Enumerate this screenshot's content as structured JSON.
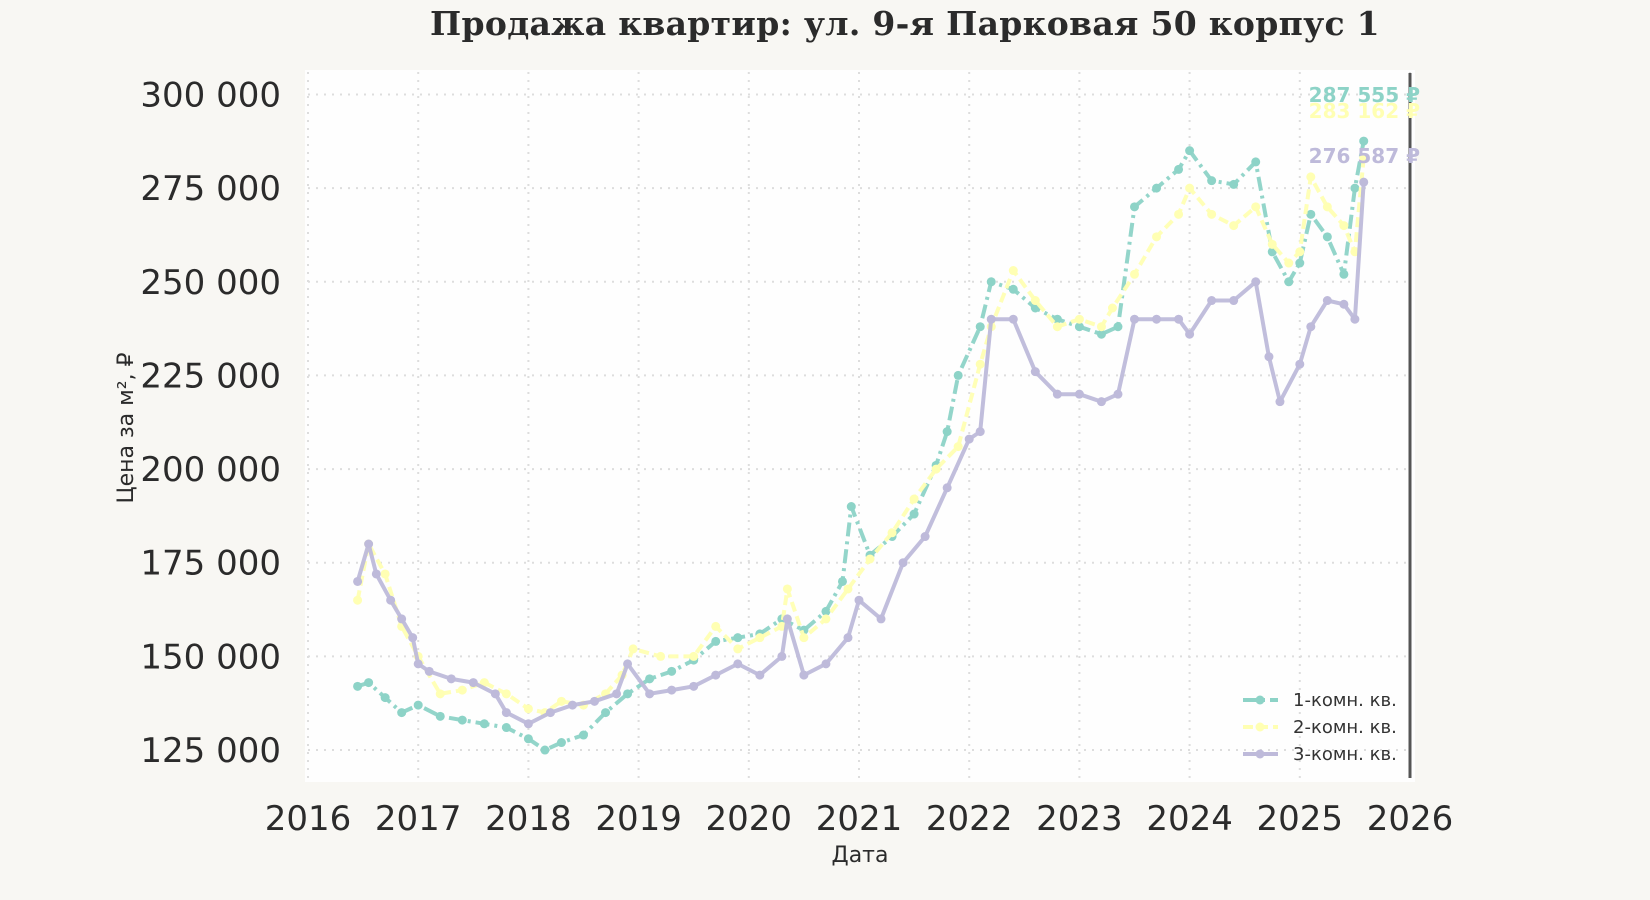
{
  "chart_data": {
    "type": "line",
    "title": "Продажа квартир: ул. 9-я Парковая 50 корпус 1",
    "xlabel": "Дата",
    "ylabel": "Цена за м², ₽",
    "xlim": [
      2016.0,
      2026.0
    ],
    "ylim": [
      117000,
      306000
    ],
    "x_ticks": [
      2016,
      2017,
      2018,
      2019,
      2020,
      2021,
      2022,
      2023,
      2024,
      2025,
      2026
    ],
    "x_tick_labels": [
      "2016",
      "2017",
      "2018",
      "2019",
      "2020",
      "2021",
      "2022",
      "2023",
      "2024",
      "2025",
      "2026"
    ],
    "y_ticks": [
      125000,
      150000,
      175000,
      200000,
      225000,
      250000,
      275000,
      300000
    ],
    "y_tick_labels": [
      "125 000",
      "150 000",
      "175 000",
      "200 000",
      "225 000",
      "250 000",
      "275 000",
      "300 000"
    ],
    "grid": true,
    "legend_position": "bottom-right",
    "vertical_marker_x": 2026.0,
    "series": [
      {
        "name": "1-комн. кв.",
        "color": "#8dd3c7",
        "style": "dash-dot",
        "end_label": "287 555 ₽",
        "x": [
          2016.45,
          2016.55,
          2016.7,
          2016.85,
          2017.0,
          2017.2,
          2017.4,
          2017.6,
          2017.8,
          2018.0,
          2018.15,
          2018.3,
          2018.5,
          2018.7,
          2018.9,
          2019.1,
          2019.3,
          2019.5,
          2019.7,
          2019.9,
          2020.1,
          2020.3,
          2020.5,
          2020.7,
          2020.85,
          2020.93,
          2021.1,
          2021.3,
          2021.5,
          2021.7,
          2021.8,
          2021.9,
          2022.1,
          2022.2,
          2022.4,
          2022.6,
          2022.8,
          2023.0,
          2023.2,
          2023.35,
          2023.5,
          2023.7,
          2023.9,
          2024.0,
          2024.2,
          2024.4,
          2024.6,
          2024.75,
          2024.9,
          2025.0,
          2025.1,
          2025.25,
          2025.4,
          2025.5,
          2025.58
        ],
        "values": [
          142000,
          143000,
          139000,
          135000,
          137000,
          134000,
          133000,
          132000,
          131000,
          128000,
          125000,
          127000,
          129000,
          135000,
          140000,
          144000,
          146000,
          149000,
          154000,
          155000,
          156000,
          160000,
          157000,
          162000,
          170000,
          190000,
          177000,
          182000,
          188000,
          201000,
          210000,
          225000,
          238000,
          250000,
          248000,
          243000,
          240000,
          238000,
          236000,
          238000,
          270000,
          275000,
          280000,
          285000,
          277000,
          276000,
          282000,
          258000,
          250000,
          255000,
          268000,
          262000,
          252000,
          275000,
          287555
        ]
      },
      {
        "name": "2-комн. кв.",
        "color": "#ffffb3",
        "style": "dashed",
        "end_label": "283 162 ₽",
        "x": [
          2016.45,
          2016.55,
          2016.7,
          2016.85,
          2017.0,
          2017.2,
          2017.4,
          2017.6,
          2017.8,
          2018.0,
          2018.15,
          2018.3,
          2018.5,
          2018.7,
          2018.85,
          2018.95,
          2019.2,
          2019.5,
          2019.7,
          2019.9,
          2020.1,
          2020.3,
          2020.35,
          2020.5,
          2020.7,
          2020.9,
          2021.1,
          2021.3,
          2021.5,
          2021.7,
          2021.9,
          2022.1,
          2022.2,
          2022.4,
          2022.6,
          2022.8,
          2023.0,
          2023.2,
          2023.3,
          2023.5,
          2023.7,
          2023.9,
          2024.0,
          2024.2,
          2024.4,
          2024.6,
          2024.75,
          2024.9,
          2025.0,
          2025.1,
          2025.25,
          2025.4,
          2025.5,
          2025.58
        ],
        "values": [
          165000,
          180000,
          172000,
          158000,
          150000,
          140000,
          141000,
          143000,
          140000,
          136000,
          135000,
          138000,
          137000,
          140000,
          145000,
          152000,
          150000,
          150000,
          158000,
          152000,
          155000,
          158000,
          168000,
          155000,
          160000,
          168000,
          176000,
          183000,
          192000,
          200000,
          206000,
          228000,
          238000,
          253000,
          245000,
          238000,
          240000,
          238000,
          243000,
          252000,
          262000,
          268000,
          275000,
          268000,
          265000,
          270000,
          260000,
          255000,
          258000,
          278000,
          270000,
          265000,
          258000,
          283162
        ]
      },
      {
        "name": "3-комн. кв.",
        "color": "#bebada",
        "style": "solid",
        "end_label": "276 587 ₽",
        "x": [
          2016.45,
          2016.55,
          2016.62,
          2016.75,
          2016.85,
          2016.95,
          2017.0,
          2017.1,
          2017.3,
          2017.5,
          2017.7,
          2017.8,
          2018.0,
          2018.2,
          2018.4,
          2018.6,
          2018.8,
          2018.9,
          2019.1,
          2019.3,
          2019.5,
          2019.7,
          2019.9,
          2020.1,
          2020.3,
          2020.35,
          2020.5,
          2020.7,
          2020.9,
          2021.0,
          2021.2,
          2021.4,
          2021.6,
          2021.8,
          2022.0,
          2022.1,
          2022.2,
          2022.4,
          2022.6,
          2022.8,
          2023.0,
          2023.2,
          2023.35,
          2023.5,
          2023.7,
          2023.9,
          2024.0,
          2024.2,
          2024.4,
          2024.6,
          2024.72,
          2024.82,
          2025.0,
          2025.1,
          2025.25,
          2025.4,
          2025.5,
          2025.58
        ],
        "values": [
          170000,
          180000,
          172000,
          165000,
          160000,
          155000,
          148000,
          146000,
          144000,
          143000,
          140000,
          135000,
          132000,
          135000,
          137000,
          138000,
          140000,
          148000,
          140000,
          141000,
          142000,
          145000,
          148000,
          145000,
          150000,
          160000,
          145000,
          148000,
          155000,
          165000,
          160000,
          175000,
          182000,
          195000,
          208000,
          210000,
          240000,
          240000,
          226000,
          220000,
          220000,
          218000,
          220000,
          240000,
          240000,
          240000,
          236000,
          245000,
          245000,
          250000,
          230000,
          218000,
          228000,
          238000,
          245000,
          244000,
          240000,
          276587
        ]
      }
    ]
  }
}
